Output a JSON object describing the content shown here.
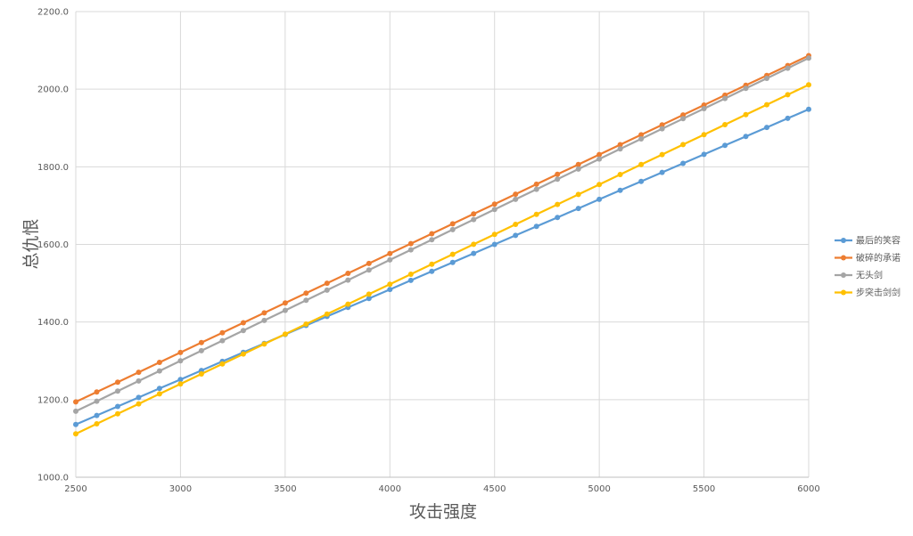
{
  "chart_data": {
    "type": "line",
    "xlabel": "攻击强度",
    "ylabel": "总仇恨",
    "xlim": [
      2500,
      6000
    ],
    "ylim": [
      1000,
      2200
    ],
    "x_ticks": [
      2500,
      3000,
      3500,
      4000,
      4500,
      5000,
      5500,
      6000
    ],
    "y_ticks": [
      "1000.0",
      "1200.0",
      "1400.0",
      "1600.0",
      "1800.0",
      "2000.0",
      "2200.0"
    ],
    "grid": true,
    "legend_position": "right",
    "x": [
      2500,
      2600,
      2700,
      2800,
      2900,
      3000,
      3100,
      3200,
      3300,
      3400,
      3500,
      3600,
      3700,
      3800,
      3900,
      4000,
      4100,
      4200,
      4300,
      4400,
      4500,
      4600,
      4700,
      4800,
      4900,
      5000,
      5100,
      5200,
      5300,
      5400,
      5500,
      5600,
      5700,
      5800,
      5900,
      6000
    ],
    "series": [
      {
        "name": "最后的笑容",
        "color": "#5b9bd5",
        "start": 1136,
        "step": 23.2
      },
      {
        "name": "破碎的承诺",
        "color": "#ed7d31",
        "start": 1194,
        "step": 25.5
      },
      {
        "name": "无头剑",
        "color": "#a5a5a5",
        "start": 1170,
        "step": 26.0
      },
      {
        "name": "步突击剑剑",
        "color": "#ffc000",
        "start": 1112,
        "step": 25.7
      }
    ]
  }
}
